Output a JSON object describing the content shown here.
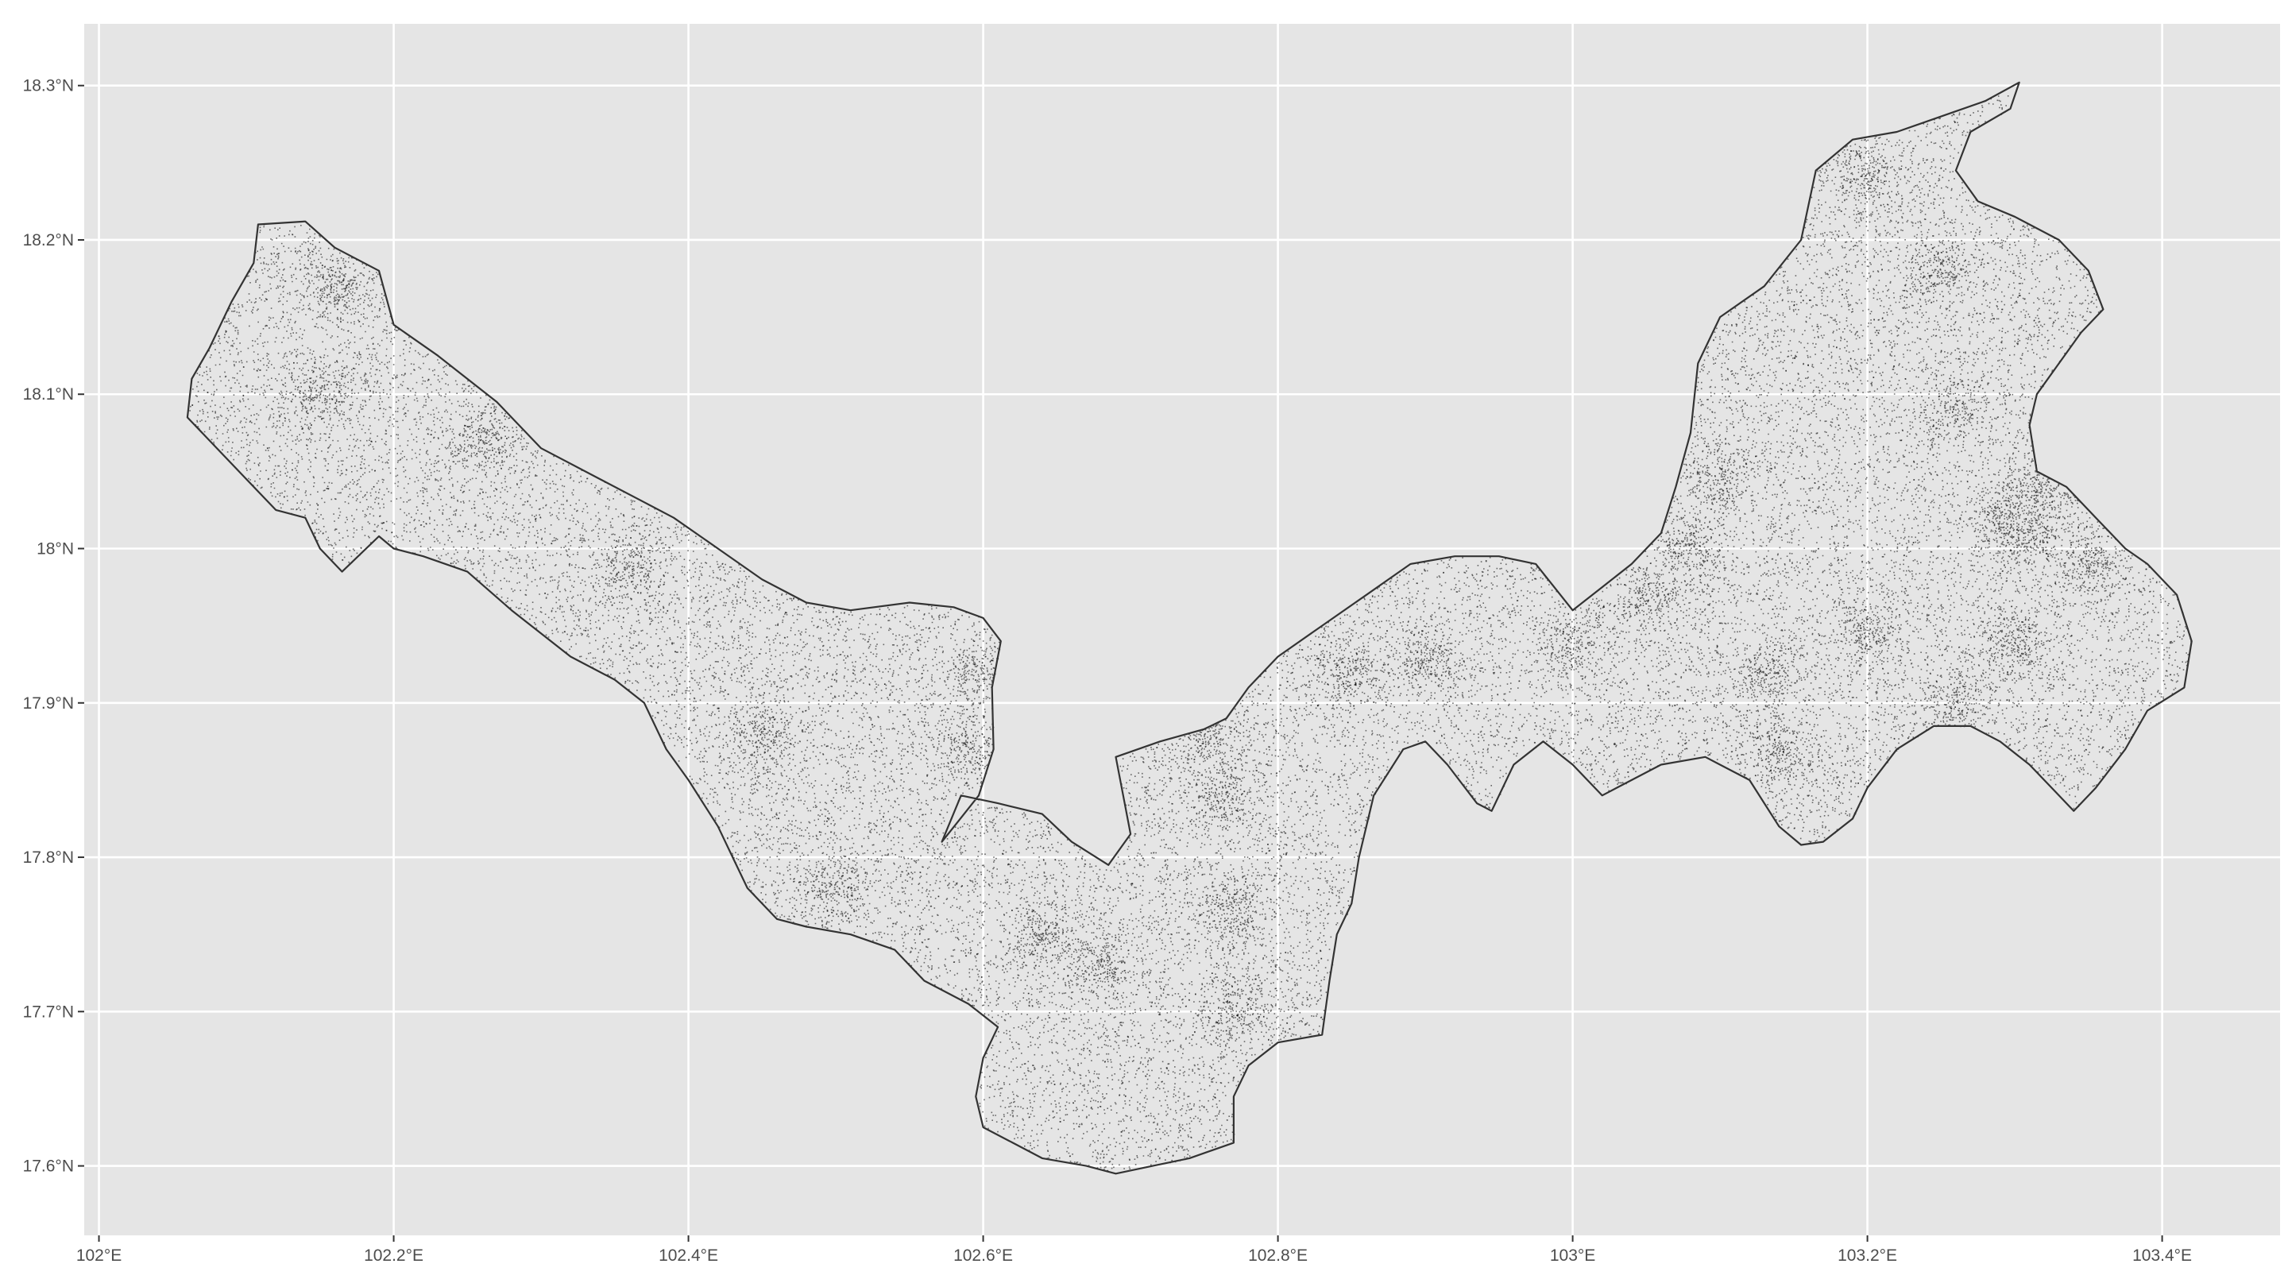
{
  "chart_data": {
    "type": "scatter",
    "title": "",
    "xlabel": "",
    "ylabel": "",
    "xlim": [
      101.99,
      103.48
    ],
    "ylim": [
      17.555,
      18.34
    ],
    "x_ticks": [
      "102°E",
      "102.2°E",
      "102.4°E",
      "102.6°E",
      "102.8°E",
      "103°E",
      "103.2°E",
      "103.4°E"
    ],
    "y_ticks": [
      "18.3°N",
      "18.2°N",
      "18.1°N",
      "18°N",
      "17.9°N",
      "17.8°N",
      "17.7°N",
      "17.6°N"
    ],
    "x_tick_values": [
      102.0,
      102.2,
      102.4,
      102.6,
      102.8,
      103.0,
      103.2,
      103.4
    ],
    "y_tick_values": [
      18.3,
      18.2,
      18.1,
      18.0,
      17.9,
      17.8,
      17.7,
      17.6
    ],
    "grid": true,
    "legend": "none",
    "layers": [
      {
        "kind": "polygon",
        "description_of_shape": "boundary outline"
      },
      {
        "kind": "points",
        "approx_count": 30000
      }
    ],
    "boundary": [
      [
        102.06,
        18.085
      ],
      [
        102.063,
        18.11
      ],
      [
        102.075,
        18.13
      ],
      [
        102.09,
        18.16
      ],
      [
        102.105,
        18.185
      ],
      [
        102.108,
        18.21
      ],
      [
        102.14,
        18.212
      ],
      [
        102.16,
        18.195
      ],
      [
        102.19,
        18.18
      ],
      [
        102.2,
        18.145
      ],
      [
        102.23,
        18.125
      ],
      [
        102.27,
        18.095
      ],
      [
        102.3,
        18.065
      ],
      [
        102.34,
        18.045
      ],
      [
        102.37,
        18.03
      ],
      [
        102.39,
        18.02
      ],
      [
        102.42,
        18.0
      ],
      [
        102.45,
        17.98
      ],
      [
        102.48,
        17.965
      ],
      [
        102.51,
        17.96
      ],
      [
        102.55,
        17.965
      ],
      [
        102.58,
        17.962
      ],
      [
        102.6,
        17.955
      ],
      [
        102.612,
        17.94
      ],
      [
        102.606,
        17.91
      ],
      [
        102.607,
        17.87
      ],
      [
        102.597,
        17.84
      ],
      [
        102.582,
        17.822
      ],
      [
        102.572,
        17.81
      ],
      [
        102.585,
        17.84
      ],
      [
        102.61,
        17.835
      ],
      [
        102.64,
        17.828
      ],
      [
        102.66,
        17.81
      ],
      [
        102.685,
        17.795
      ],
      [
        102.7,
        17.815
      ],
      [
        102.695,
        17.84
      ],
      [
        102.69,
        17.865
      ],
      [
        102.72,
        17.875
      ],
      [
        102.75,
        17.883
      ],
      [
        102.765,
        17.89
      ],
      [
        102.78,
        17.91
      ],
      [
        102.8,
        17.93
      ],
      [
        102.83,
        17.95
      ],
      [
        102.86,
        17.97
      ],
      [
        102.89,
        17.99
      ],
      [
        102.92,
        17.995
      ],
      [
        102.95,
        17.995
      ],
      [
        102.975,
        17.99
      ],
      [
        103.0,
        17.96
      ],
      [
        103.02,
        17.975
      ],
      [
        103.04,
        17.99
      ],
      [
        103.06,
        18.01
      ],
      [
        103.07,
        18.04
      ],
      [
        103.08,
        18.075
      ],
      [
        103.085,
        18.12
      ],
      [
        103.1,
        18.15
      ],
      [
        103.13,
        18.17
      ],
      [
        103.155,
        18.2
      ],
      [
        103.165,
        18.245
      ],
      [
        103.19,
        18.265
      ],
      [
        103.22,
        18.27
      ],
      [
        103.25,
        18.28
      ],
      [
        103.28,
        18.29
      ],
      [
        103.303,
        18.302
      ],
      [
        103.297,
        18.285
      ],
      [
        103.27,
        18.27
      ],
      [
        103.26,
        18.245
      ],
      [
        103.275,
        18.225
      ],
      [
        103.3,
        18.215
      ],
      [
        103.33,
        18.2
      ],
      [
        103.35,
        18.18
      ],
      [
        103.36,
        18.155
      ],
      [
        103.345,
        18.14
      ],
      [
        103.33,
        18.12
      ],
      [
        103.315,
        18.1
      ],
      [
        103.31,
        18.08
      ],
      [
        103.315,
        18.05
      ],
      [
        103.335,
        18.04
      ],
      [
        103.355,
        18.02
      ],
      [
        103.375,
        18.0
      ],
      [
        103.39,
        17.99
      ],
      [
        103.41,
        17.97
      ],
      [
        103.42,
        17.94
      ],
      [
        103.415,
        17.91
      ],
      [
        103.39,
        17.895
      ],
      [
        103.375,
        17.87
      ],
      [
        103.355,
        17.845
      ],
      [
        103.34,
        17.83
      ],
      [
        103.33,
        17.84
      ],
      [
        103.31,
        17.86
      ],
      [
        103.29,
        17.875
      ],
      [
        103.27,
        17.885
      ],
      [
        103.245,
        17.885
      ],
      [
        103.22,
        17.87
      ],
      [
        103.2,
        17.845
      ],
      [
        103.19,
        17.825
      ],
      [
        103.17,
        17.81
      ],
      [
        103.155,
        17.808
      ],
      [
        103.14,
        17.82
      ],
      [
        103.12,
        17.85
      ],
      [
        103.09,
        17.865
      ],
      [
        103.06,
        17.86
      ],
      [
        103.04,
        17.85
      ],
      [
        103.02,
        17.84
      ],
      [
        103.0,
        17.86
      ],
      [
        102.98,
        17.875
      ],
      [
        102.96,
        17.86
      ],
      [
        102.945,
        17.83
      ],
      [
        102.935,
        17.835
      ],
      [
        102.915,
        17.86
      ],
      [
        102.9,
        17.875
      ],
      [
        102.885,
        17.87
      ],
      [
        102.865,
        17.84
      ],
      [
        102.855,
        17.8
      ],
      [
        102.85,
        17.77
      ],
      [
        102.84,
        17.75
      ],
      [
        102.835,
        17.72
      ],
      [
        102.83,
        17.685
      ],
      [
        102.8,
        17.68
      ],
      [
        102.78,
        17.665
      ],
      [
        102.77,
        17.645
      ],
      [
        102.77,
        17.615
      ],
      [
        102.74,
        17.605
      ],
      [
        102.715,
        17.6
      ],
      [
        102.69,
        17.595
      ],
      [
        102.67,
        17.6
      ],
      [
        102.64,
        17.605
      ],
      [
        102.62,
        17.615
      ],
      [
        102.6,
        17.625
      ],
      [
        102.595,
        17.645
      ],
      [
        102.6,
        17.67
      ],
      [
        102.61,
        17.69
      ],
      [
        102.59,
        17.705
      ],
      [
        102.56,
        17.72
      ],
      [
        102.54,
        17.74
      ],
      [
        102.51,
        17.75
      ],
      [
        102.48,
        17.755
      ],
      [
        102.46,
        17.76
      ],
      [
        102.44,
        17.78
      ],
      [
        102.43,
        17.8
      ],
      [
        102.42,
        17.82
      ],
      [
        102.4,
        17.85
      ],
      [
        102.385,
        17.87
      ],
      [
        102.37,
        17.9
      ],
      [
        102.35,
        17.915
      ],
      [
        102.32,
        17.93
      ],
      [
        102.3,
        17.945
      ],
      [
        102.28,
        17.96
      ],
      [
        102.25,
        17.985
      ],
      [
        102.22,
        17.995
      ],
      [
        102.2,
        18.0
      ],
      [
        102.19,
        18.008
      ],
      [
        102.165,
        17.985
      ],
      [
        102.15,
        18.0
      ],
      [
        102.14,
        18.02
      ],
      [
        102.12,
        18.025
      ],
      [
        102.1,
        18.045
      ],
      [
        102.08,
        18.065
      ],
      [
        102.06,
        18.085
      ]
    ],
    "hotspots": [
      [
        102.6,
        17.92
      ],
      [
        102.59,
        17.87
      ],
      [
        102.75,
        17.88
      ],
      [
        102.76,
        17.84
      ],
      [
        102.77,
        17.77
      ],
      [
        102.77,
        17.7
      ],
      [
        102.64,
        17.75
      ],
      [
        102.68,
        17.73
      ],
      [
        102.5,
        17.78
      ],
      [
        102.45,
        17.88
      ],
      [
        102.36,
        17.99
      ],
      [
        102.26,
        18.07
      ],
      [
        102.15,
        18.1
      ],
      [
        102.16,
        18.17
      ],
      [
        103.08,
        18.0
      ],
      [
        103.1,
        18.05
      ],
      [
        103.29,
        18.02
      ],
      [
        103.31,
        18.01
      ],
      [
        103.26,
        17.9
      ],
      [
        103.3,
        17.94
      ],
      [
        103.2,
        17.945
      ],
      [
        103.13,
        17.92
      ],
      [
        103.14,
        17.87
      ],
      [
        103.26,
        18.09
      ],
      [
        103.25,
        18.18
      ],
      [
        103.2,
        18.24
      ],
      [
        103.17,
        18.27
      ],
      [
        103.05,
        17.97
      ],
      [
        102.9,
        17.93
      ],
      [
        102.85,
        17.92
      ],
      [
        103.0,
        17.94
      ],
      [
        103.35,
        17.99
      ],
      [
        103.32,
        18.04
      ]
    ]
  }
}
